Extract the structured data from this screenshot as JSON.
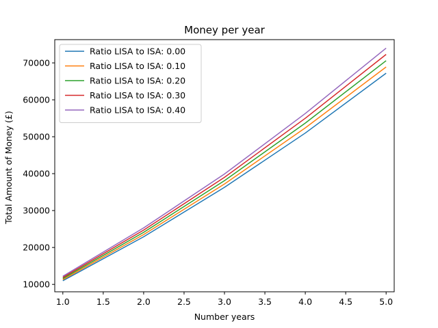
{
  "chart_data": {
    "type": "line",
    "title": "Money per year",
    "xlabel": "Number years",
    "ylabel": "Total Amount of Money (£)",
    "x": [
      1,
      2,
      3,
      4,
      5
    ],
    "xlim": [
      0.9,
      5.1
    ],
    "ylim": [
      8000,
      76300
    ],
    "xticks": [
      1.0,
      1.5,
      2.0,
      2.5,
      3.0,
      3.5,
      4.0,
      4.5,
      5.0
    ],
    "xtick_labels": [
      "1.0",
      "1.5",
      "2.0",
      "2.5",
      "3.0",
      "3.5",
      "4.0",
      "4.5",
      "5.0"
    ],
    "yticks": [
      10000,
      20000,
      30000,
      40000,
      50000,
      60000,
      70000
    ],
    "ytick_labels": [
      "10000",
      "20000",
      "30000",
      "40000",
      "50000",
      "60000",
      "70000"
    ],
    "grid": false,
    "legend_position": "top-left",
    "series": [
      {
        "name": "Ratio LISA to ISA: 0.00",
        "color": "#1f77b4",
        "values": [
          11000,
          22900,
          36300,
          51000,
          67200
        ]
      },
      {
        "name": "Ratio LISA to ISA: 0.10",
        "color": "#ff7f0e",
        "values": [
          11300,
          23500,
          37200,
          52400,
          68900
        ]
      },
      {
        "name": "Ratio LISA to ISA: 0.20",
        "color": "#2ca02c",
        "values": [
          11600,
          24100,
          38100,
          53700,
          70600
        ]
      },
      {
        "name": "Ratio LISA to ISA: 0.30",
        "color": "#d62728",
        "values": [
          11900,
          24700,
          39000,
          55000,
          72300
        ]
      },
      {
        "name": "Ratio LISA to ISA: 0.40",
        "color": "#9467bd",
        "values": [
          12200,
          25300,
          39900,
          56300,
          74000
        ]
      }
    ]
  }
}
